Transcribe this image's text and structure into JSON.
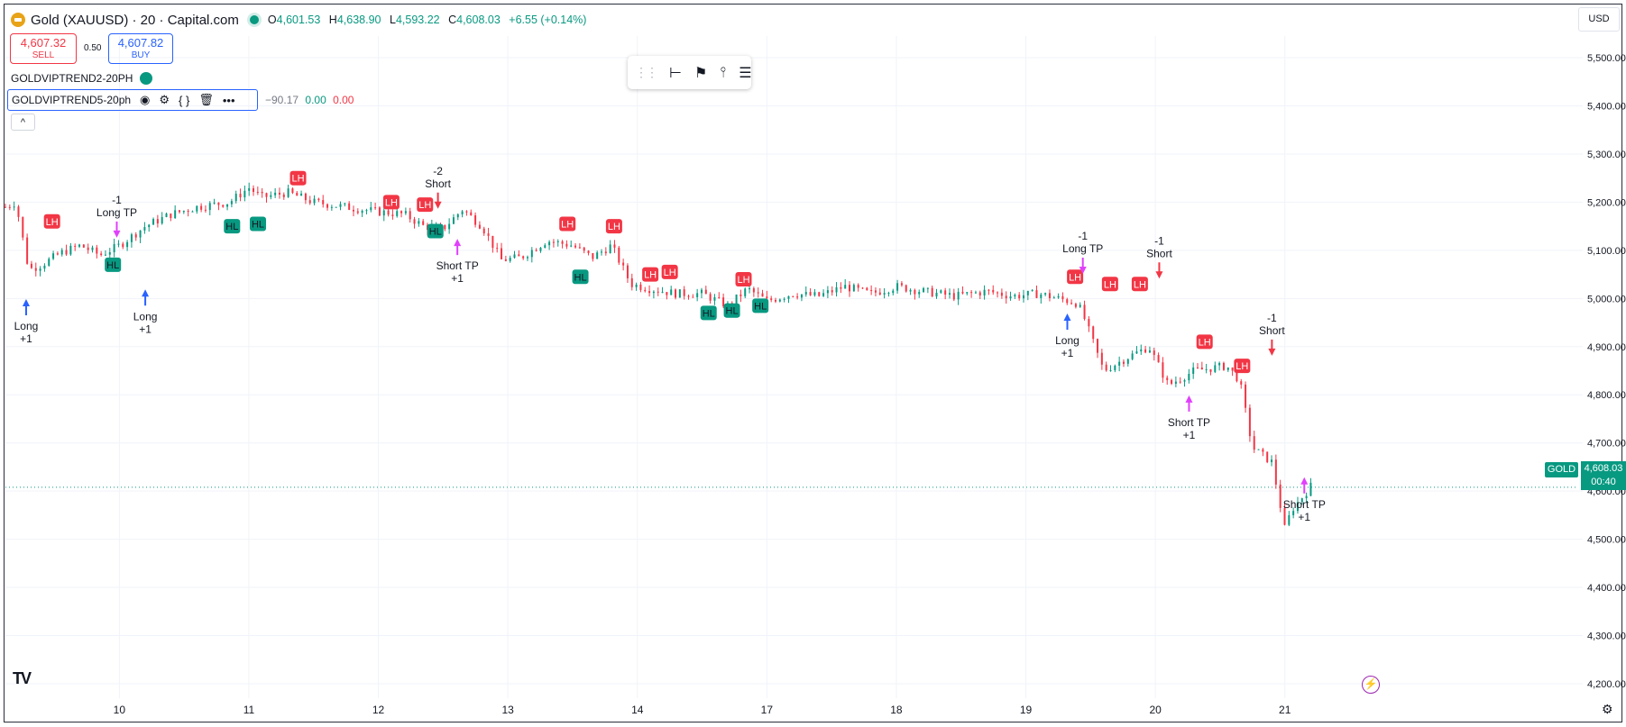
{
  "header": {
    "title": "Gold (XAUUSD) · 20 · Capital.com",
    "ohlc": [
      {
        "k": "O",
        "v": "4,601.53"
      },
      {
        "k": "H",
        "v": "4,638.90"
      },
      {
        "k": "L",
        "v": "4,593.22"
      },
      {
        "k": "C",
        "v": "4,608.03"
      }
    ],
    "change": "+6.55 (+0.14%)"
  },
  "trade": {
    "sell_price": "4,607.32",
    "sell_label": "SELL",
    "spread": "0.50",
    "buy_price": "4,607.82",
    "buy_label": "BUY"
  },
  "indicators": {
    "first": "GOLDVIPTREND2-20PH",
    "second": "GOLDVIPTREND5-20ph",
    "second_values": [
      "−90.17",
      "0.00",
      "0.00"
    ]
  },
  "currency": "USD",
  "price_tag": {
    "symbol": "GOLD",
    "price": "4,608.03",
    "countdown": "00:40"
  },
  "colors": {
    "up": "#089981",
    "down": "#f23645",
    "long": "#2962ff",
    "tp": "#e040fb"
  },
  "icons": [
    "eye-icon",
    "settings-icon",
    "source-code-icon",
    "trash-icon",
    "more-icon",
    "chevron-up-icon",
    "drag-handle-icon",
    "measure-icon",
    "flag-icon",
    "line-icon",
    "lines-icon",
    "bolt-icon",
    "gear-icon",
    "tv-logo-icon"
  ],
  "chart_data": {
    "type": "candlestick",
    "y_axis": {
      "ticks": [
        5500,
        5400,
        5300,
        5200,
        5100,
        5000,
        4900,
        4800,
        4700,
        4600,
        4500,
        4400,
        4300,
        4200
      ],
      "labels": [
        "5,500.00",
        "5,400.00",
        "5,300.00",
        "5,200.00",
        "5,100.00",
        "5,000.00",
        "4,900.00",
        "4,800.00",
        "4,700.00",
        "4,600.00",
        "4,500.00",
        "4,400.00",
        "4,300.00",
        "4,200.00"
      ],
      "range": [
        4170,
        5545
      ]
    },
    "x_axis": {
      "labels": [
        "10",
        "11",
        "12",
        "13",
        "14",
        "17",
        "18",
        "19",
        "20",
        "21"
      ],
      "range": [
        9.12,
        21.3
      ]
    },
    "close_path": [
      [
        9.12,
        5190
      ],
      [
        9.2,
        5200
      ],
      [
        9.3,
        5060
      ],
      [
        9.4,
        5070
      ],
      [
        9.55,
        5095
      ],
      [
        9.7,
        5110
      ],
      [
        9.85,
        5090
      ],
      [
        10.0,
        5110
      ],
      [
        10.2,
        5150
      ],
      [
        10.4,
        5175
      ],
      [
        10.6,
        5190
      ],
      [
        10.85,
        5200
      ],
      [
        11.0,
        5230
      ],
      [
        11.1,
        5210
      ],
      [
        11.3,
        5220
      ],
      [
        11.5,
        5200
      ],
      [
        11.75,
        5190
      ],
      [
        12.0,
        5180
      ],
      [
        12.2,
        5175
      ],
      [
        12.35,
        5150
      ],
      [
        12.5,
        5145
      ],
      [
        12.65,
        5185
      ],
      [
        12.8,
        5150
      ],
      [
        12.95,
        5080
      ],
      [
        13.1,
        5085
      ],
      [
        13.3,
        5120
      ],
      [
        13.5,
        5110
      ],
      [
        13.65,
        5085
      ],
      [
        13.8,
        5110
      ],
      [
        13.95,
        5030
      ],
      [
        14.1,
        5020
      ],
      [
        14.3,
        5010
      ],
      [
        14.5,
        5010
      ],
      [
        14.7,
        4985
      ],
      [
        14.85,
        5020
      ],
      [
        15.0,
        4995
      ],
      [
        15.2,
        5010
      ],
      [
        15.4,
        5005
      ],
      [
        15.6,
        5025
      ],
      [
        15.8,
        5010
      ],
      [
        16.0,
        5025
      ],
      [
        16.2,
        5015
      ],
      [
        16.45,
        5005
      ],
      [
        16.7,
        5015
      ],
      [
        16.9,
        5005
      ],
      [
        17.1,
        5010
      ],
      [
        17.25,
        5000
      ],
      [
        17.4,
        4990
      ],
      [
        17.45,
        4960
      ],
      [
        17.6,
        4850
      ],
      [
        17.8,
        4880
      ],
      [
        17.95,
        4900
      ],
      [
        18.1,
        4820
      ],
      [
        18.3,
        4850
      ],
      [
        18.55,
        4860
      ],
      [
        18.65,
        4830
      ],
      [
        18.75,
        4690
      ],
      [
        18.9,
        4660
      ],
      [
        19.0,
        4520
      ],
      [
        19.05,
        4560
      ],
      [
        19.2,
        4610
      ]
    ],
    "signals": [
      {
        "text": [
          "Long",
          "+1"
        ],
        "kind": "long",
        "x": 9.28,
        "y": 5010
      },
      {
        "text": [
          "-1",
          "Long TP"
        ],
        "kind": "long-tp",
        "x": 9.98,
        "y": 5115
      },
      {
        "text": [
          "Long",
          "+1"
        ],
        "kind": "long",
        "x": 10.2,
        "y": 5030
      },
      {
        "text": [
          "-2",
          "Short"
        ],
        "kind": "short",
        "x": 12.46,
        "y": 5175
      },
      {
        "text": [
          "Short TP",
          "+1"
        ],
        "kind": "short-tp",
        "x": 12.61,
        "y": 5135
      },
      {
        "text": [
          "Long",
          "+1"
        ],
        "kind": "long",
        "x": 17.32,
        "y": 4980
      },
      {
        "text": [
          "-1",
          "Long TP"
        ],
        "kind": "long-tp",
        "x": 17.44,
        "y": 5040
      },
      {
        "text": [
          "-1",
          "Short"
        ],
        "kind": "short",
        "x": 18.03,
        "y": 5030
      },
      {
        "text": [
          "Short TP",
          "+1"
        ],
        "kind": "short-tp",
        "x": 18.26,
        "y": 4810
      },
      {
        "text": [
          "-1",
          "Short"
        ],
        "kind": "short",
        "x": 18.9,
        "y": 4870
      },
      {
        "text": [
          "Short TP",
          "+1"
        ],
        "kind": "short-tp",
        "x": 19.15,
        "y": 4640
      }
    ],
    "markers": [
      {
        "label": "LH",
        "x": 9.48,
        "y": 5160
      },
      {
        "label": "HL",
        "x": 9.95,
        "y": 5070
      },
      {
        "label": "HL",
        "x": 10.87,
        "y": 5150
      },
      {
        "label": "HL",
        "x": 11.07,
        "y": 5155
      },
      {
        "label": "LH",
        "x": 11.38,
        "y": 5250
      },
      {
        "label": "LH",
        "x": 12.1,
        "y": 5200
      },
      {
        "label": "LH",
        "x": 12.36,
        "y": 5195
      },
      {
        "label": "HL",
        "x": 12.44,
        "y": 5140
      },
      {
        "label": "LH",
        "x": 13.46,
        "y": 5155
      },
      {
        "label": "HL",
        "x": 13.56,
        "y": 5045
      },
      {
        "label": "LH",
        "x": 13.82,
        "y": 5150
      },
      {
        "label": "LH",
        "x": 14.1,
        "y": 5050
      },
      {
        "label": "LH",
        "x": 14.25,
        "y": 5055
      },
      {
        "label": "HL",
        "x": 14.55,
        "y": 4970
      },
      {
        "label": "HL",
        "x": 14.73,
        "y": 4975
      },
      {
        "label": "LH",
        "x": 14.82,
        "y": 5040
      },
      {
        "label": "HL",
        "x": 14.95,
        "y": 4985
      },
      {
        "label": "LH",
        "x": 17.38,
        "y": 5045
      },
      {
        "label": "LH",
        "x": 17.65,
        "y": 5030
      },
      {
        "label": "LH",
        "x": 17.88,
        "y": 5030
      },
      {
        "label": "LH",
        "x": 18.38,
        "y": 4910
      },
      {
        "label": "LH",
        "x": 18.67,
        "y": 4860
      }
    ],
    "last_price": 4608.03
  }
}
